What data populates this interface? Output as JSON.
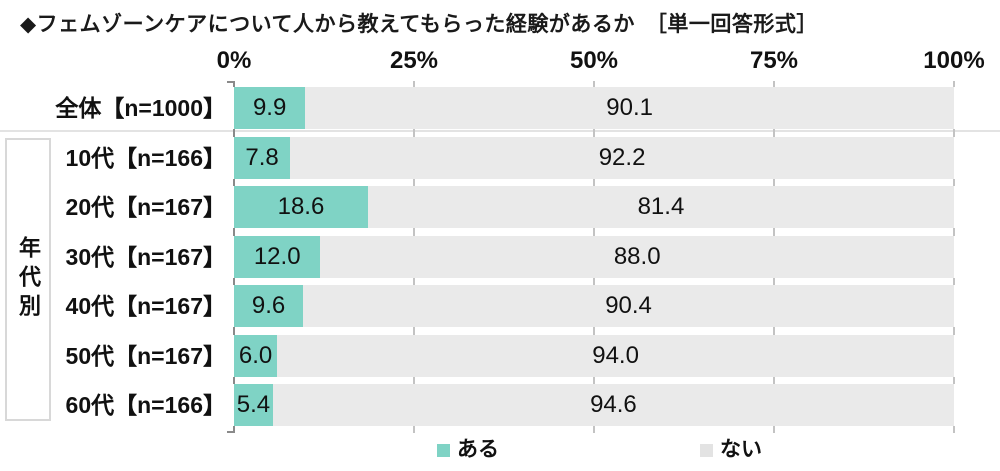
{
  "title": "◆フェムゾーンケアについて人から教えてもらった経験があるか　［単一回答形式］",
  "group_label": "年代別",
  "axis_ticks": [
    "0%",
    "25%",
    "50%",
    "75%",
    "100%"
  ],
  "legend": [
    {
      "label": "ある",
      "color": "#7FD3C5"
    },
    {
      "label": "ない",
      "color": "#EAEAEA"
    }
  ],
  "chart_data": {
    "type": "bar",
    "orientation": "horizontal",
    "stacked": true,
    "title": "フェムゾーンケアについて人から教えてもらった経験があるか［単一回答形式］",
    "categories": [
      "全体【n=1000】",
      "10代【n=166】",
      "20代【n=167】",
      "30代【n=167】",
      "40代【n=167】",
      "50代【n=167】",
      "60代【n=166】"
    ],
    "group_of_rows_2_to_7": "年代別",
    "series": [
      {
        "name": "ある",
        "color": "#7FD3C5",
        "values": [
          9.9,
          7.8,
          18.6,
          12.0,
          9.6,
          6.0,
          5.4
        ],
        "labels": [
          "9.9",
          "7.8",
          "18.6",
          "12.0",
          "9.6",
          "6.0",
          "5.4"
        ]
      },
      {
        "name": "ない",
        "color": "#EAEAEA",
        "values": [
          90.1,
          92.2,
          81.4,
          88.0,
          90.4,
          94.0,
          94.6
        ],
        "labels": [
          "90.1",
          "92.2",
          "81.4",
          "88.0",
          "90.4",
          "94.0",
          "94.6"
        ]
      }
    ],
    "xlim": [
      0,
      100
    ],
    "x_tick_labels": [
      "0%",
      "25%",
      "50%",
      "75%",
      "100%"
    ],
    "legend_position": "bottom",
    "grid": "tick marks at 25% intervals shown between rows"
  }
}
